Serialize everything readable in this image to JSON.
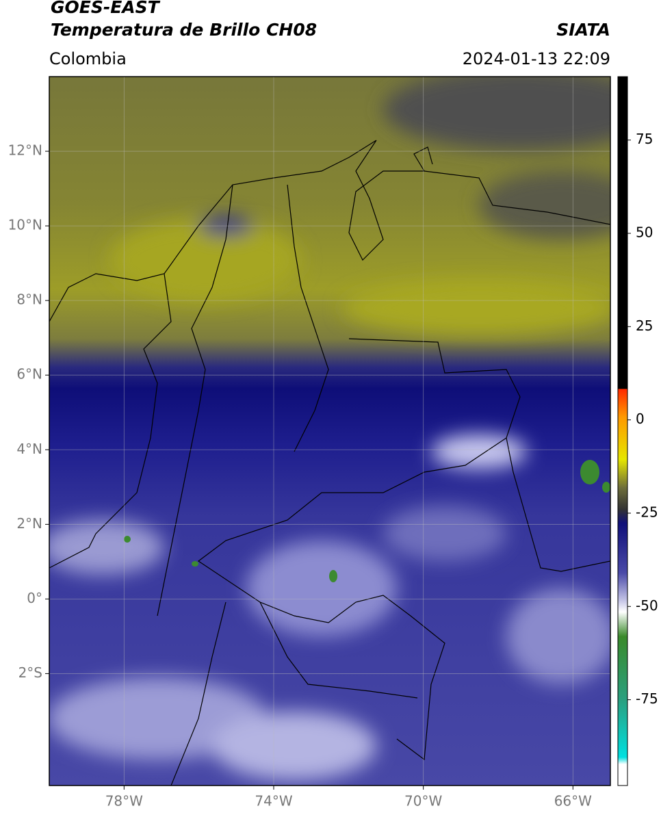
{
  "header": {
    "title": "GOES-EAST",
    "subtitle": "Temperatura de Brillo CH08",
    "region": "Colombia",
    "source": "SIATA",
    "datetime": "2024-01-13 22:09"
  },
  "map": {
    "xlim": [
      -80,
      -65
    ],
    "ylim": [
      -5,
      14
    ],
    "xticks": [
      {
        "value": -78,
        "label": "78°W"
      },
      {
        "value": -74,
        "label": "74°W"
      },
      {
        "value": -70,
        "label": "70°W"
      },
      {
        "value": -66,
        "label": "66°W"
      }
    ],
    "yticks": [
      {
        "value": 12,
        "label": "12°N"
      },
      {
        "value": 10,
        "label": "10°N"
      },
      {
        "value": 8,
        "label": "8°N"
      },
      {
        "value": 6,
        "label": "6°N"
      },
      {
        "value": 4,
        "label": "4°N"
      },
      {
        "value": 2,
        "label": "2°N"
      },
      {
        "value": 0,
        "label": "0°"
      },
      {
        "value": -2,
        "label": "2°S"
      }
    ],
    "grid": true
  },
  "colorbar": {
    "lim": [
      -98,
      92
    ],
    "ticks": [
      75,
      50,
      25,
      0,
      -25,
      -50,
      -75
    ]
  }
}
